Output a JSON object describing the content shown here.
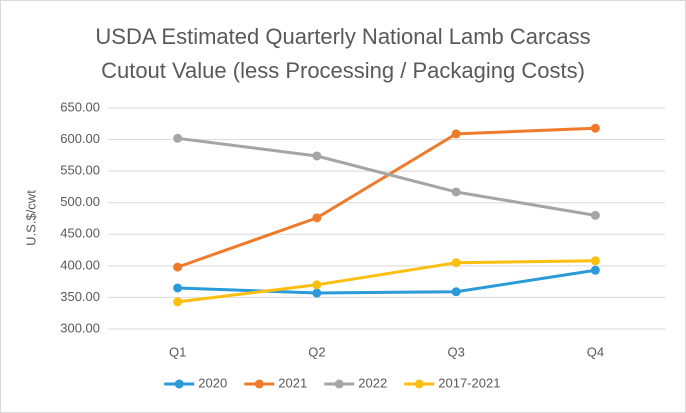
{
  "chart_data": {
    "type": "line",
    "title": [
      "USDA Estimated Quarterly National Lamb Carcass",
      "Cutout Value (less Processing / Packaging Costs)"
    ],
    "y_label": "U.S.$/cwt",
    "categories": [
      "Q1",
      "Q2",
      "Q3",
      "Q4"
    ],
    "series": [
      {
        "name": "2020",
        "color": "#2a9ad8",
        "values": [
          365,
          357,
          359,
          393
        ]
      },
      {
        "name": "2021",
        "color": "#f07a2b",
        "values": [
          398,
          476,
          609,
          618
        ]
      },
      {
        "name": "2022",
        "color": "#a5a5a5",
        "values": [
          602,
          574,
          517,
          480
        ]
      },
      {
        "name": "2017-2021",
        "color": "#fdbf0f",
        "values": [
          343,
          370,
          405,
          408
        ]
      }
    ],
    "ylim": [
      300,
      650
    ],
    "yticks": [
      {
        "value": 300,
        "label": "300.00"
      },
      {
        "value": 350,
        "label": "350.00"
      },
      {
        "value": 400,
        "label": "400.00"
      },
      {
        "value": 450,
        "label": "450.00"
      },
      {
        "value": 500,
        "label": "500.00"
      },
      {
        "value": 550,
        "label": "550.00"
      },
      {
        "value": 600,
        "label": "600.00"
      },
      {
        "value": 650,
        "label": "650.00"
      }
    ],
    "grid": true,
    "legend": "bottom"
  }
}
